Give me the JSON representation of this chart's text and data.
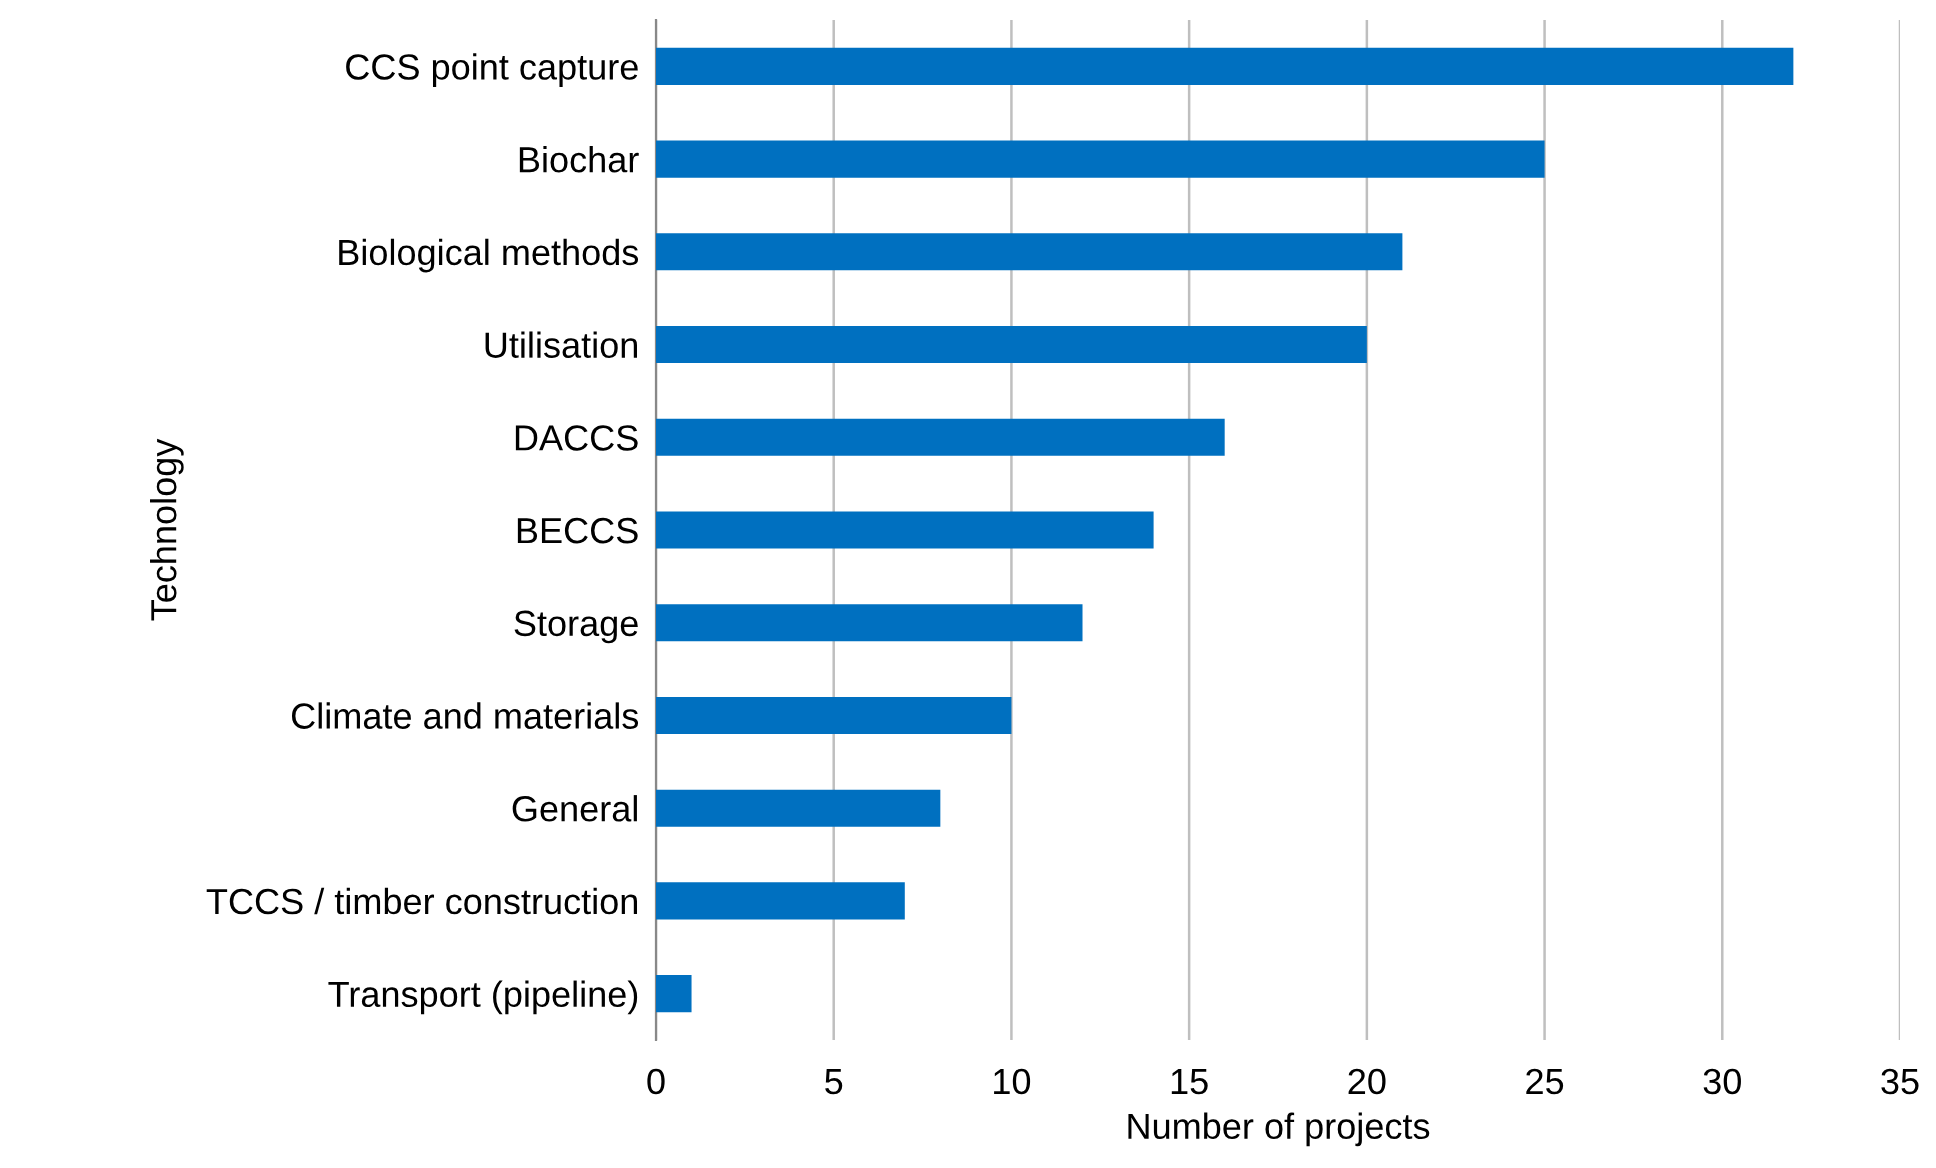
{
  "chart_data": {
    "type": "bar",
    "orientation": "horizontal",
    "xlabel": "Number of projects",
    "ylabel": "Technology",
    "categories": [
      "CCS point capture",
      "Biochar",
      "Biological methods",
      "Utilisation",
      "DACCS",
      "BECCS",
      "Storage",
      "Climate and materials",
      "General",
      "TCCS / timber construction",
      "Transport (pipeline)"
    ],
    "values": [
      32,
      25,
      21,
      20,
      16,
      14,
      12,
      10,
      8,
      7,
      1
    ],
    "color": "#0070c0",
    "xlim": [
      0,
      35
    ],
    "xticks": [
      0,
      5,
      10,
      15,
      20,
      25,
      30,
      35
    ],
    "grid": "x",
    "legend": false
  }
}
